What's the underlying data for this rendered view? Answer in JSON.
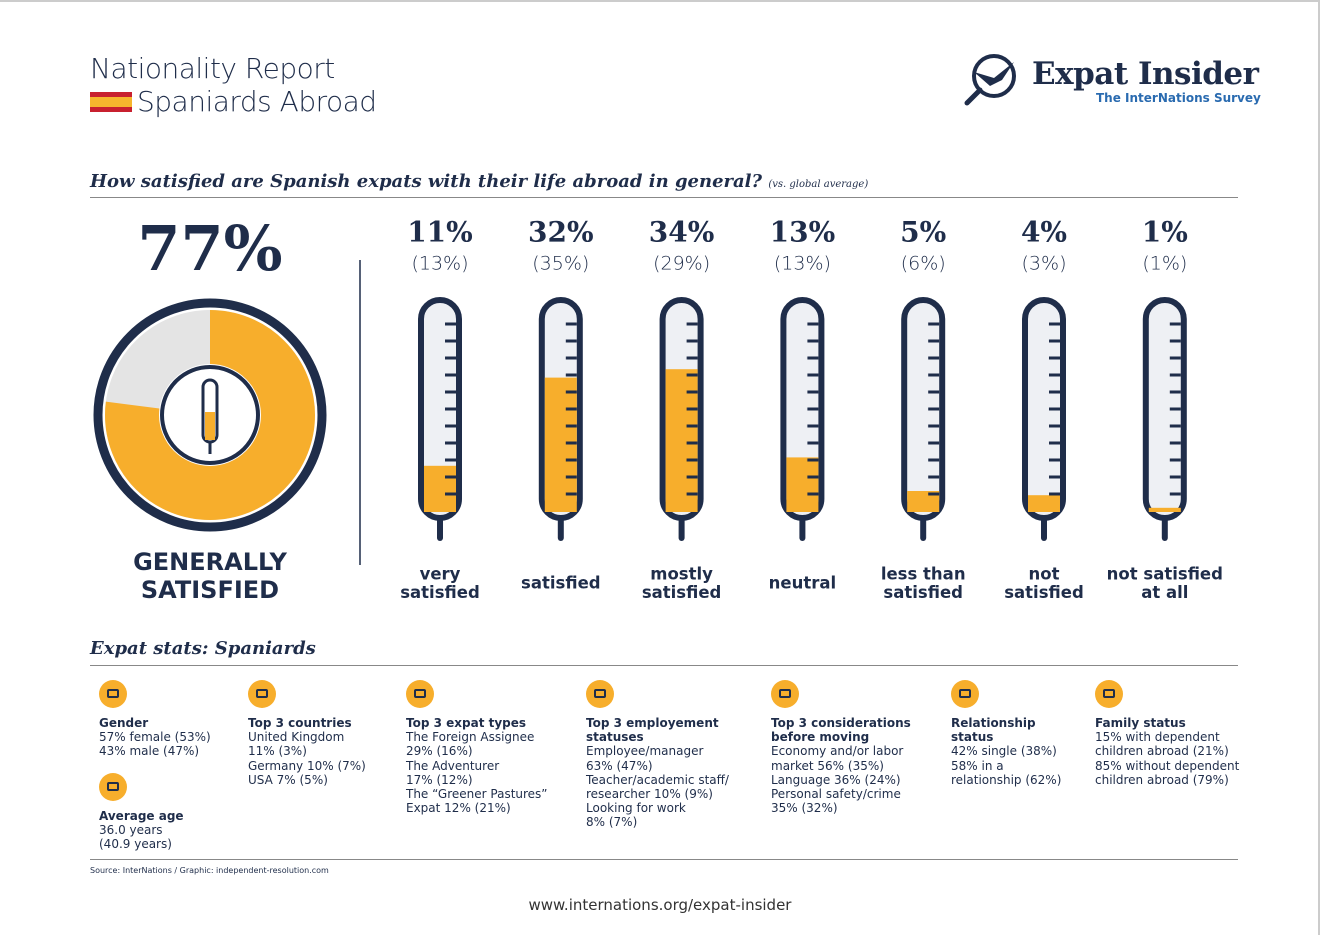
{
  "header": {
    "title": "Nationality Report",
    "subtitle": "Spaniards Abroad",
    "logo_title": "Expat Insider",
    "logo_subtitle": "The InterNations Survey"
  },
  "satisfaction": {
    "question": "How satisfied are Spanish expats with their life abroad in general?",
    "question_note": "(vs. global average)",
    "overall": {
      "value": 77,
      "label": "77%",
      "caption": [
        "GENERALLY",
        "SATISFIED"
      ]
    },
    "items": [
      {
        "label": [
          "very",
          "satisfied"
        ],
        "value": 11,
        "value_label": "11%",
        "global": 13,
        "global_label": "(13%)"
      },
      {
        "label": [
          "satisfied"
        ],
        "value": 32,
        "value_label": "32%",
        "global": 35,
        "global_label": "(35%)"
      },
      {
        "label": [
          "mostly",
          "satisfied"
        ],
        "value": 34,
        "value_label": "34%",
        "global": 29,
        "global_label": "(29%)"
      },
      {
        "label": [
          "neutral"
        ],
        "value": 13,
        "value_label": "13%",
        "global": 13,
        "global_label": "(13%)"
      },
      {
        "label": [
          "less than",
          "satisfied"
        ],
        "value": 5,
        "value_label": "5%",
        "global": 6,
        "global_label": "(6%)"
      },
      {
        "label": [
          "not",
          "satisfied"
        ],
        "value": 4,
        "value_label": "4%",
        "global": 3,
        "global_label": "(3%)"
      },
      {
        "label": [
          "not satisfied",
          "at all"
        ],
        "value": 1,
        "value_label": "1%",
        "global": 1,
        "global_label": "(1%)"
      }
    ]
  },
  "stats": {
    "title": "Expat stats: Spaniards",
    "columns": [
      [
        {
          "title": [
            "Gender"
          ],
          "lines": [
            "57% female (53%)",
            "43% male (47%)"
          ]
        },
        {
          "title": [
            "Average age"
          ],
          "lines": [
            "36.0 years",
            "(40.9 years)"
          ]
        }
      ],
      [
        {
          "title": [
            "Top 3 countries"
          ],
          "lines": [
            "United Kingdom",
            "11%  (3%)",
            "Germany 10% (7%)",
            "USA 7% (5%)"
          ]
        }
      ],
      [
        {
          "title": [
            "Top 3 expat types"
          ],
          "lines": [
            "The Foreign Assignee",
            "29% (16%)",
            "The Adventurer",
            "17% (12%)",
            "The “Greener Pastures”",
            "Expat 12% (21%)"
          ]
        }
      ],
      [
        {
          "title": [
            "Top 3 employement",
            "statuses"
          ],
          "lines": [
            "Employee/manager",
            "63% (47%)",
            "Teacher/academic staff/",
            "researcher 10% (9%)",
            "Looking for work",
            "8% (7%)"
          ]
        }
      ],
      [
        {
          "title": [
            "Top 3 considerations",
            "before moving"
          ],
          "lines": [
            "Economy and/or labor",
            "market 56% (35%)",
            "Language 36% (24%)",
            "Personal safety/crime",
            "35% (32%)"
          ]
        }
      ],
      [
        {
          "title": [
            "Relationship",
            "status"
          ],
          "lines": [
            "42% single (38%)",
            "58% in a",
            "relationship (62%)"
          ]
        }
      ],
      [
        {
          "title": [
            "Family status"
          ],
          "lines": [
            "15% with dependent",
            "children abroad (21%)",
            "85% without dependent",
            "children abroad (79%)"
          ]
        }
      ]
    ]
  },
  "footer": {
    "source": "Source: InterNations / Graphic: independent-resolution.com",
    "url": "www.internations.org/expat-insider"
  }
}
